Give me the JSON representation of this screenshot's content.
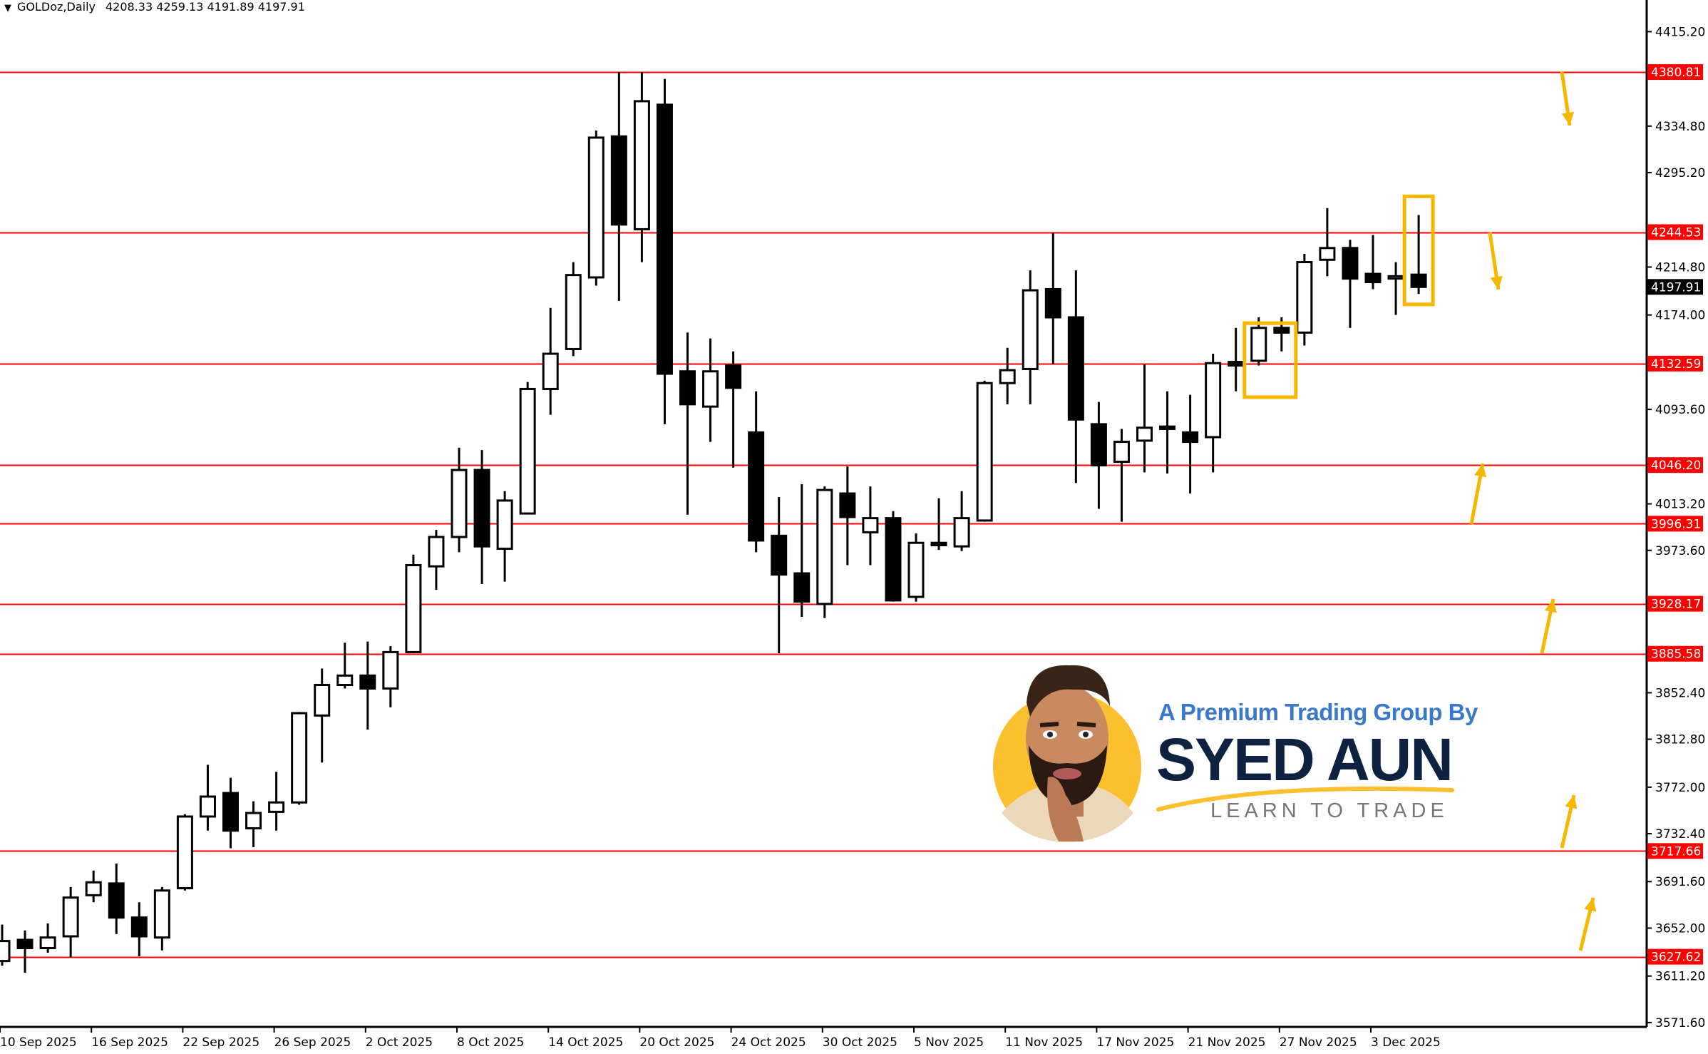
{
  "header": {
    "symbol": "GOLDoz,Daily",
    "ohlc": "4208.33 4259.13 4191.89 4197.91"
  },
  "logo": {
    "tagline": "A Premium Trading Group By",
    "name": "SYED AUN",
    "slogan": "LEARN TO TRADE"
  },
  "colors": {
    "level_line": "#ff0000",
    "annotation": "#f5b700",
    "bull_body": "#ffffff",
    "bear_body": "#000000",
    "current_price_bg": "#000000"
  },
  "chart_data": {
    "type": "candlestick",
    "title": "GOLDoz,Daily",
    "ylim": [
      3571.6,
      4415.2
    ],
    "grid": false,
    "y_ticks": [
      "4415.20",
      "4334.80",
      "4295.20",
      "4214.80",
      "4174.00",
      "4093.60",
      "4013.20",
      "3973.60",
      "3852.40",
      "3812.80",
      "3772.00",
      "3732.40",
      "3691.60",
      "3652.00",
      "3611.20",
      "3571.60"
    ],
    "x_ticks": [
      {
        "index": 0,
        "label": "10 Sep 2025"
      },
      {
        "index": 4,
        "label": "16 Sep 2025"
      },
      {
        "index": 8,
        "label": "22 Sep 2025"
      },
      {
        "index": 12,
        "label": "26 Sep 2025"
      },
      {
        "index": 16,
        "label": "2 Oct 2025"
      },
      {
        "index": 20,
        "label": "8 Oct 2025"
      },
      {
        "index": 24,
        "label": "14 Oct 2025"
      },
      {
        "index": 28,
        "label": "20 Oct 2025"
      },
      {
        "index": 32,
        "label": "24 Oct 2025"
      },
      {
        "index": 36,
        "label": "30 Oct 2025"
      },
      {
        "index": 40,
        "label": "5 Nov 2025"
      },
      {
        "index": 44,
        "label": "11 Nov 2025"
      },
      {
        "index": 48,
        "label": "17 Nov 2025"
      },
      {
        "index": 52,
        "label": "21 Nov 2025"
      },
      {
        "index": 56,
        "label": "27 Nov 2025"
      },
      {
        "index": 60,
        "label": "3 Dec 2025"
      }
    ],
    "levels": [
      "4380.81",
      "4244.53",
      "4132.59",
      "4046.20",
      "3996.31",
      "3928.17",
      "3885.58",
      "3717.66",
      "3627.62"
    ],
    "current_price": "4197.91",
    "candles": [
      [
        3624,
        3655,
        3620,
        3641
      ],
      [
        3642,
        3650,
        3614,
        3635
      ],
      [
        3635,
        3656,
        3631,
        3644
      ],
      [
        3645,
        3687,
        3627,
        3678
      ],
      [
        3680,
        3701,
        3674,
        3691
      ],
      [
        3690,
        3707,
        3647,
        3661
      ],
      [
        3661,
        3674,
        3628,
        3645
      ],
      [
        3644,
        3687,
        3633,
        3684
      ],
      [
        3686,
        3749,
        3684,
        3747
      ],
      [
        3747,
        3791,
        3735,
        3764
      ],
      [
        3767,
        3780,
        3720,
        3735
      ],
      [
        3737,
        3760,
        3721,
        3750
      ],
      [
        3751,
        3785,
        3735,
        3759
      ],
      [
        3759,
        3836,
        3757,
        3835
      ],
      [
        3833,
        3873,
        3793,
        3859
      ],
      [
        3859,
        3895,
        3856,
        3867
      ],
      [
        3867,
        3896,
        3821,
        3856
      ],
      [
        3856,
        3892,
        3840,
        3887
      ],
      [
        3887,
        3970,
        3886,
        3961
      ],
      [
        3960,
        3991,
        3940,
        3985
      ],
      [
        3985,
        4061,
        3972,
        4042
      ],
      [
        4042,
        4059,
        3945,
        3977
      ],
      [
        3975,
        4024,
        3947,
        4016
      ],
      [
        4005,
        4117,
        4005,
        4111
      ],
      [
        4111,
        4180,
        4089,
        4141
      ],
      [
        4145,
        4219,
        4139,
        4208
      ],
      [
        4206,
        4331,
        4199,
        4325
      ],
      [
        4326,
        4381,
        4186,
        4251
      ],
      [
        4247,
        4381,
        4219,
        4356
      ],
      [
        4353,
        4375,
        4081,
        4124
      ],
      [
        4126,
        4159,
        4004,
        4098
      ],
      [
        4096,
        4154,
        4066,
        4126
      ],
      [
        4131,
        4143,
        4044,
        4112
      ],
      [
        4074,
        4109,
        3972,
        3982
      ],
      [
        3986,
        4019,
        3886,
        3953
      ],
      [
        3954,
        4030,
        3917,
        3930
      ],
      [
        3928,
        4028,
        3916,
        4025
      ],
      [
        4022,
        4045,
        3961,
        4002
      ],
      [
        3989,
        4028,
        3961,
        4001
      ],
      [
        4001,
        4007,
        3930,
        3931
      ],
      [
        3934,
        3988,
        3930,
        3980
      ],
      [
        3980,
        4018,
        3974,
        3978
      ],
      [
        3977,
        4024,
        3973,
        4001
      ],
      [
        3999,
        4118,
        3998,
        4116
      ],
      [
        4116,
        4146,
        4098,
        4127
      ],
      [
        4128,
        4212,
        4098,
        4195
      ],
      [
        4196,
        4244,
        4132,
        4172
      ],
      [
        4172,
        4212,
        4031,
        4085
      ],
      [
        4081,
        4100,
        4009,
        4046
      ],
      [
        4049,
        4077,
        3998,
        4066
      ],
      [
        4067,
        4132,
        4040,
        4078
      ],
      [
        4079,
        4109,
        4039,
        4077
      ],
      [
        4074,
        4106,
        4022,
        4066
      ],
      [
        4070,
        4141,
        4040,
        4133
      ],
      [
        4134,
        4163,
        4109,
        4131
      ],
      [
        4135,
        4172,
        4131,
        4163
      ],
      [
        4163,
        4172,
        4143,
        4159
      ],
      [
        4159,
        4226,
        4148,
        4219
      ],
      [
        4221,
        4265,
        4207,
        4231
      ],
      [
        4231,
        4238,
        4163,
        4205
      ],
      [
        4209,
        4242,
        4196,
        4202
      ],
      [
        4205,
        4219,
        4174,
        4207
      ],
      [
        4208.33,
        4259.13,
        4191.89,
        4197.91
      ]
    ],
    "annotations": [
      {
        "type": "box",
        "from_index": 55,
        "to_index": 56,
        "top": 4167,
        "bottom": 4104
      },
      {
        "type": "box",
        "from_index": 62,
        "to_index": 62,
        "top": 4275,
        "bottom": 4183
      }
    ]
  }
}
